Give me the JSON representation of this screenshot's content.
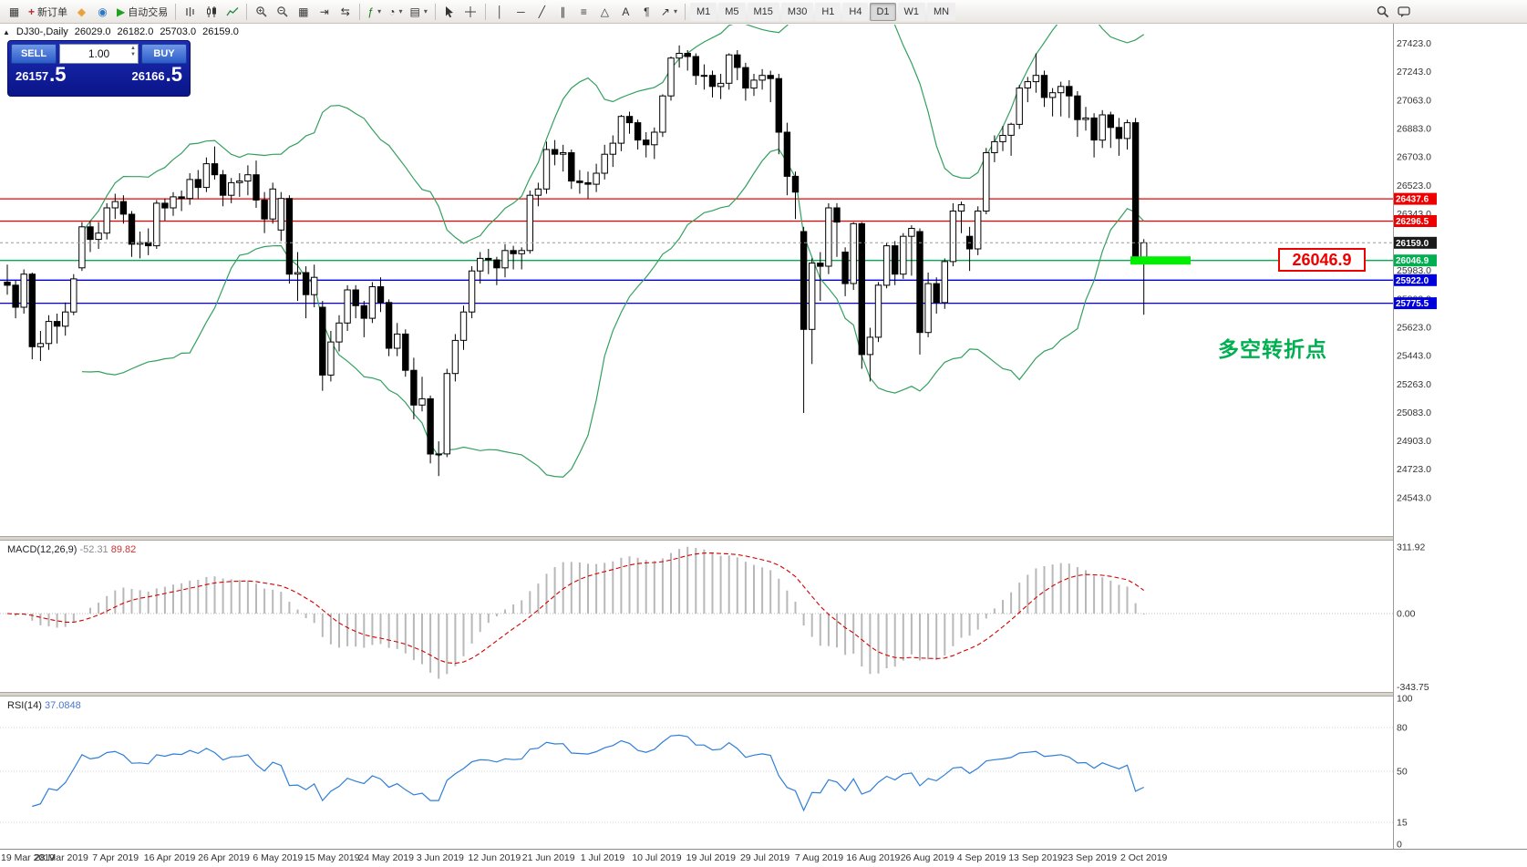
{
  "toolbar": {
    "groups": [
      {
        "items": [
          {
            "name": "chart-window-button",
            "icon": "chart-window"
          },
          {
            "name": "new-order-button",
            "icon": "new-order",
            "label": "新订单"
          },
          {
            "name": "mql5-button",
            "icon": "mql5"
          },
          {
            "name": "community-button",
            "icon": "community"
          },
          {
            "name": "autotrading-button",
            "icon": "play",
            "label": "自动交易"
          }
        ]
      },
      {
        "items": [
          {
            "name": "bar-chart-button",
            "icon": "bars"
          },
          {
            "name": "candlestick-chart-button",
            "icon": "candles"
          },
          {
            "name": "line-chart-button",
            "icon": "line"
          }
        ]
      },
      {
        "items": [
          {
            "name": "zoom-in-button",
            "icon": "zoom-in"
          },
          {
            "name": "zoom-out-button",
            "icon": "zoom-out"
          },
          {
            "name": "tile-windows-button",
            "icon": "tile"
          },
          {
            "name": "auto-scroll-button",
            "icon": "auto-scroll"
          },
          {
            "name": "chart-shift-button",
            "icon": "chart-shift"
          }
        ]
      },
      {
        "items": [
          {
            "name": "indicators-button",
            "icon": "indicators",
            "caret": true
          },
          {
            "name": "periods-button",
            "icon": "clock",
            "caret": true
          },
          {
            "name": "templates-button",
            "icon": "template",
            "caret": true
          }
        ]
      },
      {
        "items": [
          {
            "name": "cursor-button",
            "icon": "cursor"
          },
          {
            "name": "crosshair-button",
            "icon": "crosshair"
          }
        ]
      },
      {
        "items": [
          {
            "name": "vertical-line-button",
            "icon": "vline"
          },
          {
            "name": "horizontal-line-button",
            "icon": "hline"
          },
          {
            "name": "trendline-button",
            "icon": "trendline"
          },
          {
            "name": "channel-button",
            "icon": "channel"
          },
          {
            "name": "fibonacci-button",
            "icon": "fibo"
          },
          {
            "name": "shapes-button",
            "icon": "shapes"
          },
          {
            "name": "text-button",
            "icon": "text"
          },
          {
            "name": "label-button",
            "icon": "label"
          },
          {
            "name": "arrows-button",
            "icon": "arrows",
            "caret": true
          }
        ]
      }
    ],
    "timeframes": [
      {
        "label": "M1"
      },
      {
        "label": "M5"
      },
      {
        "label": "M15"
      },
      {
        "label": "M30"
      },
      {
        "label": "H1"
      },
      {
        "label": "H4"
      },
      {
        "label": "D1",
        "active": true
      },
      {
        "label": "W1"
      },
      {
        "label": "MN"
      }
    ],
    "right_items": [
      {
        "name": "search-button",
        "icon": "search"
      },
      {
        "name": "chat-button",
        "icon": "chat"
      }
    ]
  },
  "quote_strip": {
    "collapse_glyph": "▲",
    "symbol_period": "DJ30-,Daily",
    "open": "26029.0",
    "high": "26182.0",
    "low": "25703.0",
    "close": "26159.0"
  },
  "trade_panel": {
    "sell_label": "SELL",
    "buy_label": "BUY",
    "volume": "1.00",
    "sell_price": "26157.5",
    "buy_price": "26166.5"
  },
  "annotations": {
    "turning_point_text": "多空转折点",
    "price_label_text": "26046.9"
  },
  "chart_data": {
    "type": "candlestick",
    "symbol": "DJ30-",
    "period": "Daily",
    "current_price": 26159.0,
    "price_axis_labels": [
      "27423.0",
      "27243.0",
      "27063.0",
      "26883.0",
      "26703.0",
      "26523.0",
      "26343.0",
      "26163.0",
      "25983.0",
      "25803.0",
      "25623.0",
      "25443.0",
      "25263.0",
      "25083.0",
      "24903.0",
      "24723.0",
      "24543.0"
    ],
    "hlines": [
      {
        "price": 26437.6,
        "color": "#ee0000",
        "label": "26437.6"
      },
      {
        "price": 26296.5,
        "color": "#ee0000",
        "label": "26296.5"
      },
      {
        "price": 26046.9,
        "color": "#00b050",
        "label": "26046.9",
        "thick_segment": true
      },
      {
        "price": 25922.0,
        "color": "#0000dd",
        "label": "25922.0"
      },
      {
        "price": 25775.5,
        "color": "#0000dd",
        "label": "25775.5"
      }
    ],
    "dates": [
      "19 Mar 2019",
      "28 Mar 2019",
      "7 Apr 2019",
      "16 Apr 2019",
      "26 Apr 2019",
      "6 May 2019",
      "15 May 2019",
      "24 May 2019",
      "3 Jun 2019",
      "12 Jun 2019",
      "21 Jun 2019",
      "1 Jul 2019",
      "10 Jul 2019",
      "19 Jul 2019",
      "29 Jul 2019",
      "7 Aug 2019",
      "16 Aug 2019",
      "26 Aug 2019",
      "4 Sep 2019",
      "13 Sep 2019",
      "23 Sep 2019",
      "2 Oct 2019"
    ],
    "candles": [
      [
        25910,
        26020,
        25830,
        25890
      ],
      [
        25890,
        25920,
        25680,
        25750
      ],
      [
        25750,
        25990,
        25710,
        25960
      ],
      [
        25960,
        25970,
        25420,
        25500
      ],
      [
        25500,
        25600,
        25410,
        25520
      ],
      [
        25520,
        25700,
        25480,
        25660
      ],
      [
        25660,
        25710,
        25520,
        25630
      ],
      [
        25630,
        25780,
        25570,
        25720
      ],
      [
        25720,
        25960,
        25700,
        25930
      ],
      [
        26000,
        26290,
        25980,
        26260
      ],
      [
        26260,
        26300,
        26100,
        26180
      ],
      [
        26180,
        26290,
        26120,
        26220
      ],
      [
        26220,
        26410,
        26180,
        26380
      ],
      [
        26380,
        26470,
        26310,
        26420
      ],
      [
        26420,
        26460,
        26280,
        26340
      ],
      [
        26340,
        26360,
        26070,
        26150
      ],
      [
        26150,
        26230,
        26060,
        26160
      ],
      [
        26160,
        26250,
        26080,
        26140
      ],
      [
        26140,
        26430,
        26120,
        26410
      ],
      [
        26410,
        26440,
        26300,
        26380
      ],
      [
        26380,
        26480,
        26330,
        26450
      ],
      [
        26450,
        26490,
        26360,
        26440
      ],
      [
        26440,
        26600,
        26400,
        26560
      ],
      [
        26560,
        26620,
        26440,
        26510
      ],
      [
        26510,
        26700,
        26480,
        26660
      ],
      [
        26660,
        26770,
        26560,
        26590
      ],
      [
        26590,
        26620,
        26390,
        26460
      ],
      [
        26460,
        26570,
        26410,
        26540
      ],
      [
        26540,
        26600,
        26450,
        26550
      ],
      [
        26550,
        26650,
        26460,
        26590
      ],
      [
        26590,
        26680,
        26380,
        26430
      ],
      [
        26430,
        26480,
        26220,
        26310
      ],
      [
        26310,
        26540,
        26280,
        26500
      ],
      [
        26240,
        26480,
        26170,
        26440
      ],
      [
        26440,
        26460,
        25900,
        25960
      ],
      [
        25960,
        26100,
        25790,
        25970
      ],
      [
        25970,
        26010,
        25680,
        25830
      ],
      [
        25830,
        26020,
        25750,
        25940
      ],
      [
        25750,
        25790,
        25220,
        25320
      ],
      [
        25320,
        25600,
        25280,
        25530
      ],
      [
        25530,
        25700,
        25470,
        25650
      ],
      [
        25650,
        25890,
        25600,
        25860
      ],
      [
        25860,
        25890,
        25680,
        25760
      ],
      [
        25760,
        25790,
        25560,
        25680
      ],
      [
        25680,
        25910,
        25650,
        25880
      ],
      [
        25880,
        25940,
        25720,
        25780
      ],
      [
        25780,
        25800,
        25440,
        25490
      ],
      [
        25490,
        25650,
        25440,
        25580
      ],
      [
        25580,
        25610,
        25310,
        25350
      ],
      [
        25350,
        25430,
        25040,
        25130
      ],
      [
        25130,
        25310,
        25090,
        25170
      ],
      [
        25170,
        25190,
        24760,
        24820
      ],
      [
        24820,
        24900,
        24680,
        24820
      ],
      [
        24820,
        25360,
        24800,
        25330
      ],
      [
        25330,
        25580,
        25280,
        25540
      ],
      [
        25540,
        25760,
        25480,
        25720
      ],
      [
        25720,
        26010,
        25680,
        25980
      ],
      [
        25980,
        26100,
        25900,
        26060
      ],
      [
        26060,
        26120,
        25960,
        26050
      ],
      [
        26050,
        26070,
        25890,
        26000
      ],
      [
        26000,
        26150,
        25940,
        26110
      ],
      [
        26110,
        26140,
        25990,
        26090
      ],
      [
        26090,
        26130,
        25990,
        26110
      ],
      [
        26110,
        26490,
        26090,
        26460
      ],
      [
        26460,
        26540,
        26390,
        26500
      ],
      [
        26500,
        26800,
        26470,
        26750
      ],
      [
        26750,
        26810,
        26650,
        26720
      ],
      [
        26720,
        26780,
        26610,
        26730
      ],
      [
        26730,
        26750,
        26500,
        26550
      ],
      [
        26550,
        26620,
        26470,
        26540
      ],
      [
        26540,
        26610,
        26440,
        26530
      ],
      [
        26530,
        26660,
        26480,
        26600
      ],
      [
        26600,
        26780,
        26560,
        26720
      ],
      [
        26720,
        26840,
        26640,
        26790
      ],
      [
        26790,
        26970,
        26740,
        26960
      ],
      [
        26960,
        26990,
        26850,
        26920
      ],
      [
        26920,
        26940,
        26750,
        26810
      ],
      [
        26810,
        26860,
        26700,
        26780
      ],
      [
        26780,
        26890,
        26690,
        26860
      ],
      [
        26860,
        27100,
        26830,
        27090
      ],
      [
        27090,
        27340,
        27060,
        27330
      ],
      [
        27330,
        27410,
        27270,
        27360
      ],
      [
        27360,
        27380,
        27250,
        27340
      ],
      [
        27340,
        27360,
        27160,
        27220
      ],
      [
        27220,
        27290,
        27130,
        27220
      ],
      [
        27220,
        27250,
        27080,
        27150
      ],
      [
        27150,
        27230,
        27070,
        27170
      ],
      [
        27170,
        27360,
        27130,
        27350
      ],
      [
        27350,
        27380,
        27190,
        27270
      ],
      [
        27270,
        27300,
        27060,
        27140
      ],
      [
        27140,
        27230,
        27090,
        27190
      ],
      [
        27190,
        27260,
        27130,
        27220
      ],
      [
        27220,
        27250,
        27050,
        27200
      ],
      [
        27200,
        27230,
        26720,
        26860
      ],
      [
        26860,
        26920,
        26460,
        26580
      ],
      [
        26580,
        26610,
        26310,
        26480
      ],
      [
        26230,
        26260,
        25080,
        25610
      ],
      [
        25610,
        26060,
        25390,
        26030
      ],
      [
        26030,
        26100,
        25790,
        26010
      ],
      [
        26010,
        26410,
        25960,
        26380
      ],
      [
        26380,
        26410,
        26070,
        26290
      ],
      [
        26100,
        26130,
        25820,
        25900
      ],
      [
        25900,
        26290,
        25860,
        26280
      ],
      [
        26280,
        26290,
        25360,
        25450
      ],
      [
        25450,
        25620,
        25280,
        25560
      ],
      [
        25560,
        25910,
        25530,
        25890
      ],
      [
        25890,
        26160,
        25870,
        26140
      ],
      [
        26140,
        26170,
        25890,
        25960
      ],
      [
        25960,
        26220,
        25930,
        26200
      ],
      [
        26200,
        26270,
        25950,
        26250
      ],
      [
        26230,
        26250,
        25450,
        25590
      ],
      [
        25590,
        25970,
        25560,
        25900
      ],
      [
        25900,
        25940,
        25710,
        25780
      ],
      [
        25780,
        26060,
        25740,
        26040
      ],
      [
        26040,
        26410,
        26010,
        26360
      ],
      [
        26360,
        26420,
        26220,
        26400
      ],
      [
        26200,
        26260,
        25980,
        26120
      ],
      [
        26120,
        26390,
        26080,
        26360
      ],
      [
        26360,
        26760,
        26340,
        26730
      ],
      [
        26730,
        26840,
        26670,
        26800
      ],
      [
        26800,
        26900,
        26740,
        26840
      ],
      [
        26840,
        26920,
        26710,
        26910
      ],
      [
        26910,
        27160,
        26880,
        27140
      ],
      [
        27140,
        27210,
        27050,
        27180
      ],
      [
        27180,
        27360,
        27110,
        27220
      ],
      [
        27220,
        27250,
        27020,
        27080
      ],
      [
        27080,
        27140,
        26960,
        27110
      ],
      [
        27110,
        27180,
        26960,
        27150
      ],
      [
        27150,
        27190,
        26950,
        27090
      ],
      [
        27090,
        27120,
        26830,
        26940
      ],
      [
        26940,
        27020,
        26870,
        26950
      ],
      [
        26950,
        26980,
        26700,
        26810
      ],
      [
        26810,
        27000,
        26760,
        26970
      ],
      [
        26970,
        26990,
        26760,
        26890
      ],
      [
        26890,
        26950,
        26710,
        26820
      ],
      [
        26820,
        26940,
        26750,
        26920
      ],
      [
        26920,
        26950,
        26020,
        26050
      ],
      [
        26029,
        26182,
        25703,
        26159
      ]
    ],
    "indicators": {
      "bollinger": {
        "period": 20,
        "deviation": 2,
        "color": "#33a05f"
      },
      "macd": {
        "label": "MACD(12,26,9)",
        "main_value": "-52.31",
        "signal_value": "89.82",
        "axis_labels": [
          "311.92",
          "0.00",
          "-343.75"
        ],
        "axis_max": 311.92,
        "axis_min": -343.75
      },
      "rsi": {
        "label": "RSI(14)",
        "value": "37.0848",
        "axis_labels": [
          100,
          80,
          50,
          15,
          0
        ]
      }
    }
  }
}
